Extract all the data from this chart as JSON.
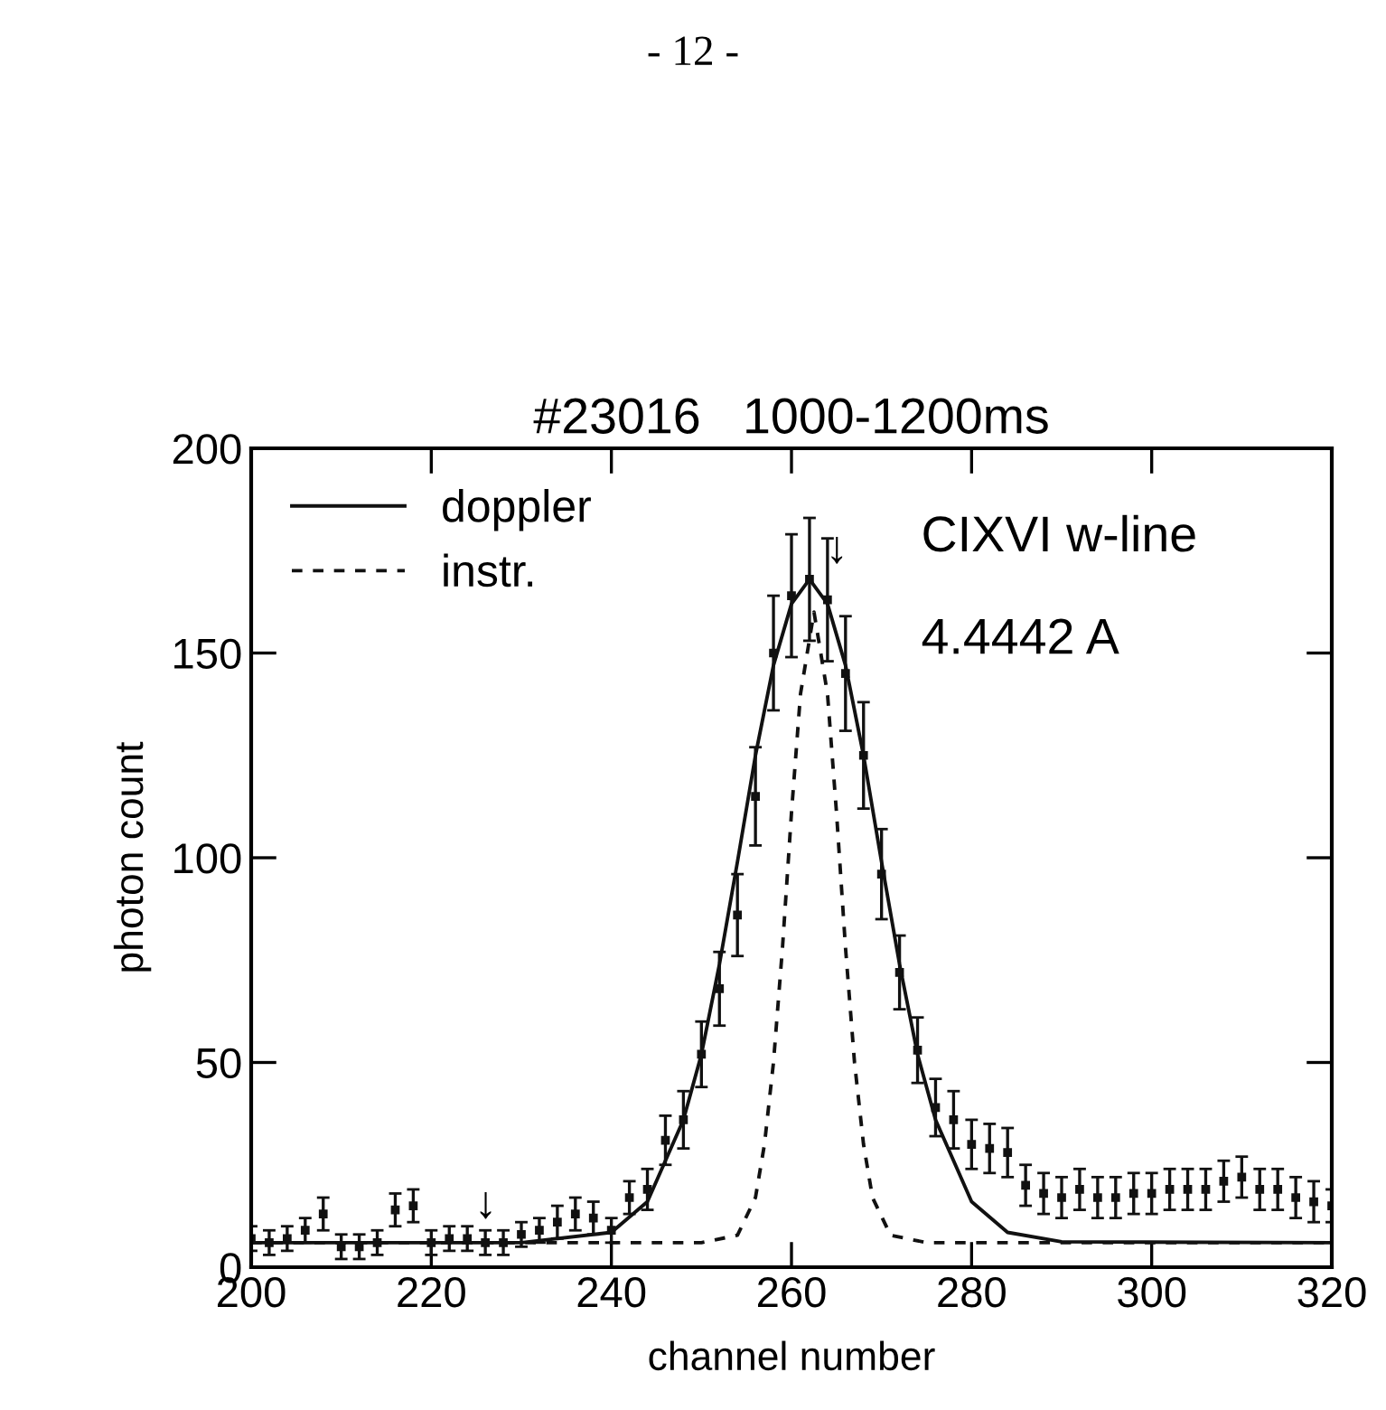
{
  "chart_data": {
    "type": "scatter",
    "title": "#23016   1000-1200ms",
    "xlabel": "channel number",
    "ylabel": "photon count",
    "xlim": [
      200,
      320
    ],
    "ylim": [
      0,
      200
    ],
    "xticks": [
      200,
      220,
      240,
      260,
      280,
      300,
      320
    ],
    "yticks": [
      0,
      50,
      100,
      150,
      200
    ],
    "grid": false,
    "legend": "top left",
    "annotations": [
      "- 12 -",
      "CIXVI w-line",
      "4.4442 A",
      "↓",
      "↓"
    ],
    "series": [
      {
        "color": "#111111",
        "marker": "square",
        "x": [
          200,
          202,
          204,
          206,
          208,
          210,
          212,
          214,
          216,
          218,
          220,
          222,
          224,
          226,
          228,
          230,
          232,
          234,
          236,
          238,
          240,
          242,
          244,
          246,
          248,
          250,
          252,
          254,
          256,
          258,
          260,
          262,
          264,
          266,
          268,
          270,
          272,
          274,
          276,
          278,
          280,
          282,
          284,
          286,
          288,
          290,
          292,
          294,
          296,
          298,
          300,
          302,
          304,
          306,
          308,
          310,
          312,
          314,
          316,
          318,
          320
        ],
        "values": [
          7,
          6,
          7,
          9,
          13,
          5,
          5,
          6,
          14,
          15,
          6,
          7,
          7,
          6,
          6,
          8,
          9,
          11,
          13,
          12,
          9,
          17,
          19,
          31,
          36,
          52,
          68,
          86,
          115,
          150,
          164,
          168,
          163,
          145,
          125,
          96,
          72,
          53,
          39,
          36,
          30,
          29,
          28,
          20,
          18,
          17,
          19,
          17,
          17,
          18,
          18,
          19,
          19,
          19,
          21,
          22,
          19,
          19,
          17,
          16,
          15
        ],
        "errors": [
          3,
          3,
          3,
          3,
          4,
          3,
          3,
          3,
          4,
          4,
          3,
          3,
          3,
          3,
          3,
          3,
          3,
          4,
          4,
          4,
          3,
          4,
          5,
          6,
          7,
          8,
          9,
          10,
          12,
          14,
          15,
          15,
          15,
          14,
          13,
          11,
          9,
          8,
          7,
          7,
          6,
          6,
          6,
          5,
          5,
          5,
          5,
          5,
          5,
          5,
          5,
          5,
          5,
          5,
          5,
          5,
          5,
          5,
          5,
          5,
          4
        ]
      },
      {
        "type": "line",
        "name": "doppler",
        "color": "#111111",
        "line_style": "solid",
        "marker": "none",
        "x": [
          200,
          230,
          240,
          244,
          248,
          250,
          252,
          254,
          256,
          258,
          260,
          262,
          264,
          266,
          268,
          270,
          272,
          274,
          276,
          280,
          284,
          290,
          320
        ],
        "values": [
          6,
          6,
          8.5,
          16,
          36,
          52,
          74,
          99,
          125,
          147,
          162,
          168,
          162,
          147,
          125,
          99,
          74,
          52,
          36,
          16,
          8.5,
          6.2,
          6
        ]
      },
      {
        "type": "line",
        "name": "instr.",
        "color": "#111111",
        "line_style": "dashed",
        "marker": "none",
        "x": [
          200,
          250,
          254,
          256,
          257,
          258,
          259,
          260,
          261,
          262.5,
          264,
          265,
          266,
          267,
          268,
          269,
          271,
          275,
          320
        ],
        "values": [
          6,
          6,
          7.8,
          17,
          30,
          50,
          78,
          111,
          140,
          160,
          140,
          111,
          78,
          50,
          30,
          17,
          7.8,
          6,
          6
        ]
      }
    ]
  }
}
